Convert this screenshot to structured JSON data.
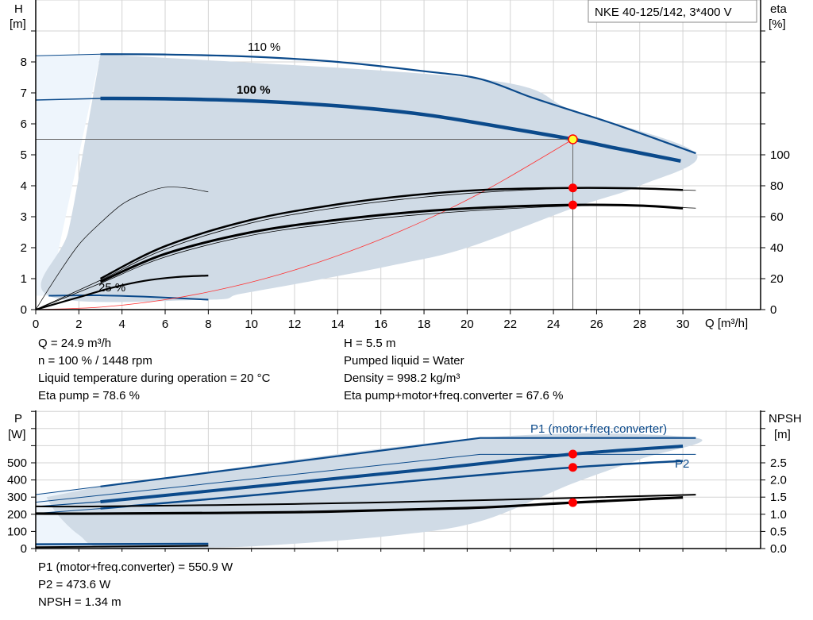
{
  "title_box": "NKE 40-125/142, 3*400 V",
  "info": {
    "left": [
      "Q = 24.9 m³/h",
      "n = 100 % / 1448 rpm",
      "Liquid temperature during operation = 20 °C",
      "Eta pump = 78.6 %"
    ],
    "right": [
      "H = 5.5 m",
      "Pumped liquid = Water",
      "Density = 998.2 kg/m³",
      "Eta pump+motor+freq.converter = 67.6 %"
    ],
    "bottom": [
      "P1 (motor+freq.converter) = 550.9 W",
      "P2 = 473.6 W",
      "NPSH = 1.34 m"
    ]
  },
  "colors": {
    "curve_blue": "#0b4a8b",
    "area": "#d0dbe6",
    "area_light": "#eef5fc",
    "point": "#ff0000",
    "duty_point_fill": "#ffff33",
    "system_curve": "#ff3333",
    "grid": "#d3d3d3"
  },
  "chart_data": [
    {
      "type": "line",
      "title": "",
      "xlabel": "Q [m³/h]",
      "ylabel": "H\n[m]",
      "ylabel_lines": [
        "H",
        "[m]"
      ],
      "y2label_lines": [
        "eta",
        "[%]"
      ],
      "xlim": [
        0,
        33.6
      ],
      "ylim": [
        0,
        10
      ],
      "y2lim": [
        0,
        200
      ],
      "xticks": [
        0,
        2,
        4,
        6,
        8,
        10,
        12,
        14,
        16,
        18,
        20,
        22,
        24,
        26,
        28,
        30
      ],
      "yticks": [
        0,
        1,
        2,
        3,
        4,
        5,
        6,
        7,
        8
      ],
      "y2ticks": [
        0,
        20,
        40,
        60,
        80,
        100
      ],
      "grid": true,
      "curve_labels": [
        "110 %",
        "100 %",
        "25 %"
      ],
      "series": [
        {
          "id": "h110",
          "axis": "H",
          "role": "head 110 %",
          "x": [
            3,
            6,
            10,
            14,
            18,
            20.6,
            23,
            25,
            27,
            30.6
          ],
          "y": [
            8.25,
            8.24,
            8.17,
            8.0,
            7.7,
            7.45,
            6.85,
            6.4,
            5.95,
            5.05
          ]
        },
        {
          "id": "h110_ext",
          "axis": "H",
          "x": [
            0,
            3
          ],
          "y": [
            8.2,
            8.25
          ]
        },
        {
          "id": "h100",
          "axis": "H",
          "x": [
            3,
            6,
            10,
            14,
            18,
            22,
            24.9,
            27,
            29.9
          ],
          "y": [
            6.82,
            6.81,
            6.74,
            6.58,
            6.3,
            5.85,
            5.5,
            5.2,
            4.8
          ]
        },
        {
          "id": "h100_ext",
          "axis": "H",
          "x": [
            0,
            3
          ],
          "y": [
            6.77,
            6.82
          ]
        },
        {
          "id": "h25",
          "axis": "H",
          "x": [
            0.6,
            3,
            5,
            8
          ],
          "y": [
            0.45,
            0.46,
            0.42,
            0.32
          ]
        },
        {
          "id": "system",
          "axis": "H",
          "x": [
            0,
            3,
            6,
            9,
            12,
            15,
            18,
            21,
            24.9
          ],
          "y": [
            0,
            0.08,
            0.32,
            0.72,
            1.28,
            2.0,
            2.87,
            3.91,
            5.5
          ]
        },
        {
          "id": "eta_pump",
          "axis": "eta",
          "x": [
            3,
            6,
            10,
            14,
            17.5,
            21,
            24.9,
            28,
            30
          ],
          "y": [
            20,
            41,
            58,
            68,
            74,
            77.5,
            78.6,
            78.3,
            77.3
          ]
        },
        {
          "id": "eta_pump_thin",
          "axis": "eta",
          "x": [
            0,
            3,
            6,
            10,
            14,
            17.5,
            21,
            25,
            28,
            30.6
          ],
          "y": [
            0,
            19,
            39,
            56,
            66,
            72,
            76,
            78.5,
            78,
            77
          ]
        },
        {
          "id": "eta_total",
          "axis": "eta",
          "x": [
            3,
            6,
            10,
            14,
            17.5,
            21,
            24.9,
            28,
            30
          ],
          "y": [
            18,
            36,
            50,
            58,
            63,
            66,
            67.6,
            67.2,
            65.5
          ]
        },
        {
          "id": "eta_total_thin",
          "axis": "eta",
          "x": [
            0,
            3,
            6,
            10,
            14,
            17.5,
            21,
            25,
            28,
            30.6
          ],
          "y": [
            0,
            17,
            34,
            48,
            56,
            61,
            64.5,
            67,
            67,
            65.5
          ]
        },
        {
          "id": "eta_25",
          "axis": "eta",
          "x": [
            0,
            1,
            2,
            3.5,
            5,
            6.5,
            8
          ],
          "y": [
            0,
            4,
            8,
            14,
            18.5,
            21,
            22
          ]
        },
        {
          "id": "eta_25_pump",
          "axis": "eta",
          "x": [
            0,
            1,
            2,
            3,
            4,
            5,
            6,
            7,
            8
          ],
          "y": [
            0,
            22,
            42,
            56,
            68,
            75,
            79,
            78.5,
            76
          ]
        }
      ],
      "operating_area": {
        "x": [
          3,
          20.6,
          25,
          30.6,
          28,
          25,
          20,
          16.75,
          13,
          9.5,
          8,
          0.6,
          1.5,
          2.3
        ],
        "y": [
          8.25,
          7.45,
          6.4,
          5.05,
          4.0,
          3.3,
          2.0,
          1.46,
          0.95,
          0.51,
          0.32,
          0.45,
          2.5,
          5.5
        ]
      },
      "duty_point": {
        "Q": 24.9,
        "H": 5.5,
        "eta_pump": 78.6,
        "eta_total": 67.6
      }
    },
    {
      "type": "line",
      "title": "",
      "xlabel": "",
      "ylabel_lines": [
        "P",
        "[W]"
      ],
      "y2label_lines": [
        "NPSH",
        "[m]"
      ],
      "xlim": [
        0,
        33.6
      ],
      "ylim": [
        0,
        805
      ],
      "y2lim": [
        0,
        4.02
      ],
      "yticks": [
        0,
        100,
        200,
        300,
        400,
        500
      ],
      "y2ticks": [
        "0.0",
        "0.5",
        "1.0",
        "1.5",
        "2.0",
        "2.5"
      ],
      "grid": true,
      "curve_labels": [
        "P1 (motor+freq.converter)",
        "P2"
      ],
      "series": [
        {
          "id": "p1_110",
          "axis": "P",
          "x": [
            3,
            20.6,
            30.6
          ],
          "y": [
            362,
            645,
            645
          ]
        },
        {
          "id": "p1_110_ext",
          "axis": "P",
          "x": [
            0,
            3
          ],
          "y": [
            315,
            362
          ]
        },
        {
          "id": "p2_110",
          "axis": "P",
          "x": [
            0,
            20.6,
            30.6
          ],
          "y": [
            270,
            549,
            549
          ]
        },
        {
          "id": "p1_100",
          "axis": "P",
          "x": [
            3,
            10,
            18,
            24.9,
            30
          ],
          "y": [
            273,
            360,
            460,
            550.9,
            597
          ]
        },
        {
          "id": "p1_100_ext",
          "axis": "P",
          "x": [
            0,
            3
          ],
          "y": [
            245,
            273
          ]
        },
        {
          "id": "p2_100",
          "axis": "P",
          "x": [
            3,
            10,
            18,
            24.9,
            30
          ],
          "y": [
            233,
            310,
            400,
            473.6,
            511
          ]
        },
        {
          "id": "p2_100_ext",
          "axis": "P",
          "x": [
            0,
            3
          ],
          "y": [
            205,
            233
          ]
        },
        {
          "id": "p_25",
          "axis": "P",
          "x": [
            0,
            8
          ],
          "y": [
            25,
            28
          ]
        },
        {
          "id": "npsh_110",
          "axis": "NPSH",
          "x": [
            0,
            3,
            12,
            20,
            30.6
          ],
          "y": [
            1.23,
            1.23,
            1.3,
            1.4,
            1.57
          ]
        },
        {
          "id": "npsh_100",
          "axis": "NPSH",
          "x": [
            0,
            3,
            12,
            20,
            24.9,
            30
          ],
          "y": [
            1.02,
            1.02,
            1.06,
            1.18,
            1.34,
            1.49
          ]
        },
        {
          "id": "npsh_25",
          "axis": "NPSH",
          "x": [
            0,
            8
          ],
          "y": [
            0.04,
            0.08
          ]
        }
      ],
      "operating_area": {
        "x": [
          3,
          20.6,
          30.6,
          28,
          24.9,
          20.6,
          16.5,
          11,
          8,
          3.3,
          2,
          1,
          0.5
        ],
        "y": [
          362,
          645,
          645,
          520,
          380,
          159,
          75,
          20,
          5,
          0,
          80,
          200,
          300
        ]
      },
      "duty_point": {
        "Q": 24.9,
        "P1": 550.9,
        "P2": 473.6,
        "NPSH": 1.34
      }
    }
  ]
}
